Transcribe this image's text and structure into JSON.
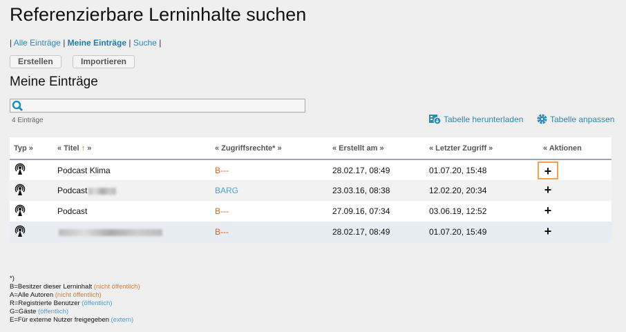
{
  "page_title": "Referenzierbare Lerninhalte suchen",
  "nav": {
    "items": [
      {
        "label": "Alle Einträge",
        "active": false
      },
      {
        "label": "Meine Einträge",
        "active": true
      },
      {
        "label": "Suche",
        "active": false
      }
    ],
    "separator": "|"
  },
  "buttons": {
    "create": "Erstellen",
    "import": "Importieren"
  },
  "section_title": "Meine Einträge",
  "search": {
    "value": "",
    "placeholder": ""
  },
  "count": "4 Einträge",
  "tools": {
    "download": "Tabelle herunterladen",
    "customize": "Tabelle anpassen"
  },
  "table": {
    "headers": {
      "type": "Typ »",
      "title": "« Titel",
      "title_sort": "↑",
      "title_suffix": "»",
      "access": "« Zugriffsrechte* »",
      "created": "« Erstellt am »",
      "last": "« Letzter Zugriff »",
      "actions": "« Aktionen"
    },
    "rows": [
      {
        "icon": "podcast-icon",
        "title": "Podcast Klima",
        "access": "B---",
        "created": "28.02.17, 08:49",
        "last": "01.07.20, 15:48",
        "action": "+"
      },
      {
        "icon": "podcast-icon",
        "title": "Podcast",
        "access": "BARG",
        "created": "23.03.16, 08:38",
        "last": "12.02.20, 20:34",
        "action": "+"
      },
      {
        "icon": "podcast-icon",
        "title": "Podcast",
        "access": "B---",
        "created": "27.09.16, 07:34",
        "last": "03.06.19, 12:52",
        "action": "+"
      },
      {
        "icon": "podcast-icon",
        "title": "",
        "access": "B---",
        "created": "28.02.17, 08:49",
        "last": "01.07.20, 15:49",
        "action": "+"
      }
    ]
  },
  "legend": {
    "heading": "*)",
    "items": [
      {
        "text": "B=Besitzer dieser Lerninhalt",
        "note": "(nicht öffentlich)"
      },
      {
        "text": "A=Alle Autoren",
        "note": "(nicht öffentlich)"
      },
      {
        "text": "R=Registrierte Benutzer",
        "note": "(öffentlich)"
      },
      {
        "text": "G=Gäste",
        "note": "(öffentlich)"
      },
      {
        "text": "E=Für externe Nutzer freigegeben",
        "note": "(extern)"
      }
    ]
  },
  "colors": {
    "link": "#2a8ab5",
    "private": "#d9601e",
    "public": "#4a9fd4",
    "focus": "#f0a050"
  }
}
